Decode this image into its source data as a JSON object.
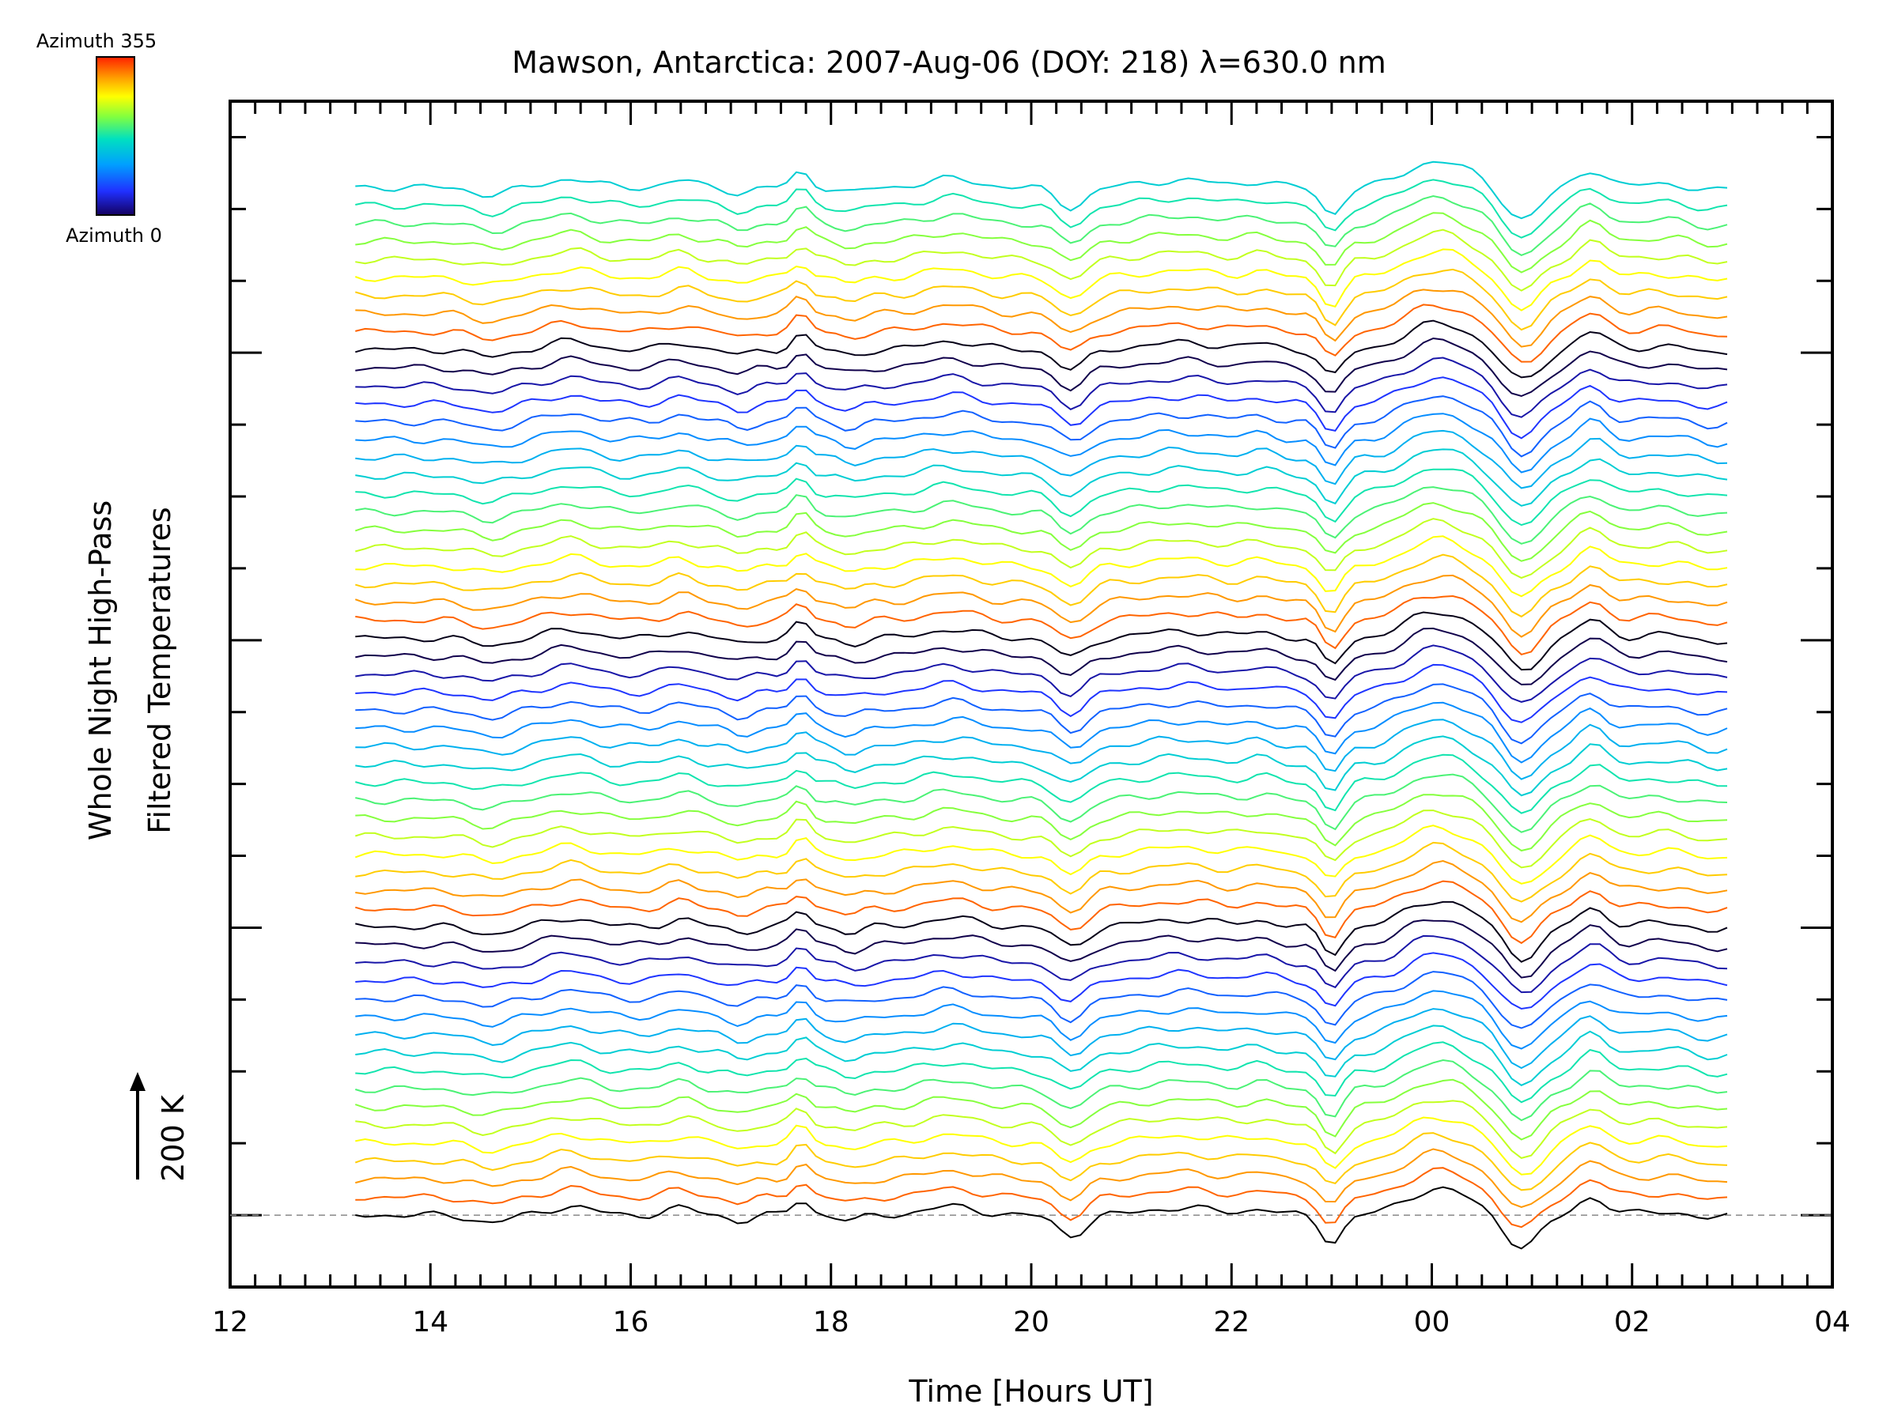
{
  "chart_data": {
    "type": "line",
    "title": "Mawson, Antarctica: 2007-Aug-06 (DOY: 218) λ=630.0 nm",
    "xlabel": "Time [Hours UT]",
    "ylabel_line1": "Whole Night High-Pass",
    "ylabel_line2": "Filtered Temperatures",
    "scale_label": "200 K",
    "x_tick_labels": [
      "12",
      "14",
      "16",
      "18",
      "20",
      "22",
      "00",
      "02",
      "04"
    ],
    "xlim": [
      12,
      28
    ],
    "ylim_offset_steps": [
      -1,
      15.5
    ],
    "data_start_hour": 13.25,
    "data_end_hour": 26.95,
    "colorbar": {
      "top_label": "Azimuth 355",
      "bottom_label": "Azimuth 0",
      "colormap": [
        "#7a0000",
        "#ff3c00",
        "#ffa500",
        "#ffff00",
        "#80ff40",
        "#00e0c0",
        "#00a0ff",
        "#2030ff",
        "#140060",
        "#000000"
      ]
    },
    "series_count": 58,
    "grid": false,
    "legend": "colorbar top-left"
  }
}
